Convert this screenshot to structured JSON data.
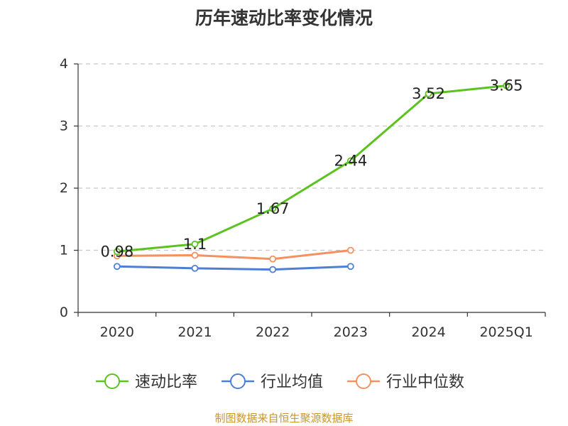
{
  "chart_data": {
    "type": "line",
    "title": "历年速动比率变化情况",
    "categories": [
      "2020",
      "2021",
      "2022",
      "2023",
      "2024",
      "2025Q1"
    ],
    "ylim": [
      0,
      4
    ],
    "yticks": [
      "0",
      "1",
      "2",
      "3",
      "4"
    ],
    "grid": true,
    "legend_position": "bottom",
    "series": [
      {
        "name": "速动比率",
        "color": "#5cc220",
        "values": [
          0.98,
          1.1,
          1.67,
          2.44,
          3.52,
          3.65
        ],
        "labels": [
          "0.98",
          "1.1",
          "1.67",
          "2.44",
          "3.52",
          "3.65"
        ]
      },
      {
        "name": "行业均值",
        "color": "#4f7fd4",
        "values": [
          0.74,
          0.71,
          0.69,
          0.74,
          null,
          null
        ],
        "labels": null
      },
      {
        "name": "行业中位数",
        "color": "#f4915f",
        "values": [
          0.91,
          0.92,
          0.86,
          1.0,
          null,
          null
        ],
        "labels": null
      }
    ]
  },
  "source": "制图数据来自恒生聚源数据库"
}
